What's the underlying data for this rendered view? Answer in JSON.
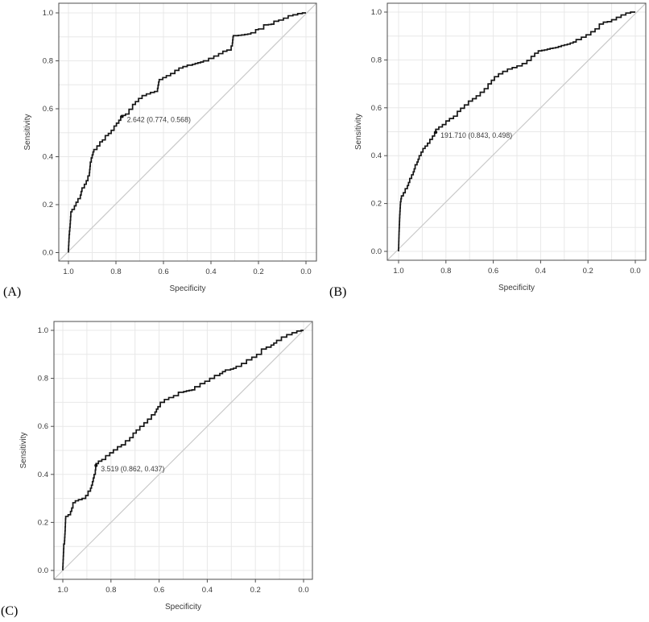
{
  "colors": {
    "background": "#ffffff",
    "curve": "#161616",
    "diagonal_line": "#c9c9c9",
    "grid": "#e8e8e8",
    "panel_border": "#4d4d4d",
    "tick_mark": "#4d4d4d",
    "text": "#3a3a3a",
    "threshold_point": "#111111"
  },
  "chart_data": [
    {
      "id": "A",
      "type": "line",
      "panel_label": "(A)",
      "xlabel": "Specificity",
      "ylabel": "Sensitivity",
      "x_axis_reversed": true,
      "xlim": [
        1.0,
        0.0
      ],
      "ylim": [
        0.0,
        1.0
      ],
      "x_ticks": [
        "1.0",
        "0.8",
        "0.6",
        "0.4",
        "0.2",
        "0.0"
      ],
      "y_ticks": [
        "0.0",
        "0.2",
        "0.4",
        "0.6",
        "0.8",
        "1.0"
      ],
      "grid": true,
      "grid_step": 0.1,
      "diagonal_reference_line": true,
      "threshold_annotation": {
        "text": "2.642 (0.774, 0.568)",
        "threshold": 2.642,
        "specificity": 0.774,
        "sensitivity": 0.568
      },
      "curve_points": [
        [
          1.0,
          0.0
        ],
        [
          0.997,
          0.06
        ],
        [
          0.993,
          0.105
        ],
        [
          0.99,
          0.15
        ],
        [
          0.985,
          0.17
        ],
        [
          0.975,
          0.18
        ],
        [
          0.968,
          0.195
        ],
        [
          0.96,
          0.21
        ],
        [
          0.95,
          0.225
        ],
        [
          0.943,
          0.255
        ],
        [
          0.933,
          0.27
        ],
        [
          0.925,
          0.285
        ],
        [
          0.918,
          0.3
        ],
        [
          0.912,
          0.32
        ],
        [
          0.908,
          0.36
        ],
        [
          0.9,
          0.395
        ],
        [
          0.893,
          0.42
        ],
        [
          0.88,
          0.43
        ],
        [
          0.868,
          0.445
        ],
        [
          0.857,
          0.462
        ],
        [
          0.845,
          0.47
        ],
        [
          0.832,
          0.488
        ],
        [
          0.82,
          0.497
        ],
        [
          0.808,
          0.51
        ],
        [
          0.798,
          0.528
        ],
        [
          0.788,
          0.54
        ],
        [
          0.78,
          0.552
        ],
        [
          0.774,
          0.568
        ],
        [
          0.76,
          0.572
        ],
        [
          0.745,
          0.578
        ],
        [
          0.73,
          0.598
        ],
        [
          0.718,
          0.618
        ],
        [
          0.705,
          0.63
        ],
        [
          0.69,
          0.643
        ],
        [
          0.672,
          0.655
        ],
        [
          0.655,
          0.662
        ],
        [
          0.638,
          0.668
        ],
        [
          0.625,
          0.672
        ],
        [
          0.618,
          0.712
        ],
        [
          0.603,
          0.722
        ],
        [
          0.588,
          0.73
        ],
        [
          0.57,
          0.738
        ],
        [
          0.552,
          0.747
        ],
        [
          0.535,
          0.76
        ],
        [
          0.518,
          0.77
        ],
        [
          0.5,
          0.776
        ],
        [
          0.478,
          0.782
        ],
        [
          0.455,
          0.789
        ],
        [
          0.432,
          0.795
        ],
        [
          0.41,
          0.8
        ],
        [
          0.388,
          0.81
        ],
        [
          0.368,
          0.82
        ],
        [
          0.35,
          0.83
        ],
        [
          0.333,
          0.84
        ],
        [
          0.315,
          0.845
        ],
        [
          0.31,
          0.862
        ],
        [
          0.306,
          0.9
        ],
        [
          0.285,
          0.905
        ],
        [
          0.258,
          0.908
        ],
        [
          0.232,
          0.912
        ],
        [
          0.212,
          0.917
        ],
        [
          0.2,
          0.93
        ],
        [
          0.178,
          0.933
        ],
        [
          0.158,
          0.95
        ],
        [
          0.135,
          0.953
        ],
        [
          0.115,
          0.965
        ],
        [
          0.095,
          0.97
        ],
        [
          0.075,
          0.978
        ],
        [
          0.055,
          0.988
        ],
        [
          0.035,
          0.992
        ],
        [
          0.015,
          0.997
        ],
        [
          0.0,
          1.0
        ]
      ]
    },
    {
      "id": "B",
      "type": "line",
      "panel_label": "(B)",
      "xlabel": "Specificity",
      "ylabel": "Sensitivity",
      "x_axis_reversed": true,
      "xlim": [
        1.0,
        0.0
      ],
      "ylim": [
        0.0,
        1.0
      ],
      "x_ticks": [
        "1.0",
        "0.8",
        "0.6",
        "0.4",
        "0.2",
        "0.0"
      ],
      "y_ticks": [
        "0.0",
        "0.2",
        "0.4",
        "0.6",
        "0.8",
        "1.0"
      ],
      "grid": true,
      "grid_step": 0.1,
      "diagonal_reference_line": true,
      "threshold_annotation": {
        "text": "191.710 (0.843, 0.498)",
        "threshold": 191.71,
        "specificity": 0.843,
        "sensitivity": 0.498
      },
      "curve_points": [
        [
          1.0,
          0.0
        ],
        [
          0.998,
          0.07
        ],
        [
          0.995,
          0.14
        ],
        [
          0.992,
          0.195
        ],
        [
          0.988,
          0.22
        ],
        [
          0.98,
          0.232
        ],
        [
          0.972,
          0.245
        ],
        [
          0.963,
          0.262
        ],
        [
          0.953,
          0.288
        ],
        [
          0.945,
          0.305
        ],
        [
          0.938,
          0.32
        ],
        [
          0.93,
          0.345
        ],
        [
          0.922,
          0.362
        ],
        [
          0.913,
          0.385
        ],
        [
          0.905,
          0.4
        ],
        [
          0.897,
          0.415
        ],
        [
          0.888,
          0.43
        ],
        [
          0.878,
          0.44
        ],
        [
          0.868,
          0.452
        ],
        [
          0.857,
          0.468
        ],
        [
          0.848,
          0.482
        ],
        [
          0.843,
          0.498
        ],
        [
          0.83,
          0.51
        ],
        [
          0.815,
          0.52
        ],
        [
          0.8,
          0.53
        ],
        [
          0.785,
          0.545
        ],
        [
          0.768,
          0.555
        ],
        [
          0.752,
          0.565
        ],
        [
          0.738,
          0.585
        ],
        [
          0.722,
          0.598
        ],
        [
          0.705,
          0.612
        ],
        [
          0.688,
          0.628
        ],
        [
          0.672,
          0.638
        ],
        [
          0.655,
          0.65
        ],
        [
          0.638,
          0.665
        ],
        [
          0.622,
          0.68
        ],
        [
          0.608,
          0.7
        ],
        [
          0.595,
          0.715
        ],
        [
          0.578,
          0.73
        ],
        [
          0.56,
          0.742
        ],
        [
          0.54,
          0.752
        ],
        [
          0.52,
          0.762
        ],
        [
          0.5,
          0.768
        ],
        [
          0.478,
          0.775
        ],
        [
          0.458,
          0.785
        ],
        [
          0.44,
          0.798
        ],
        [
          0.425,
          0.815
        ],
        [
          0.41,
          0.828
        ],
        [
          0.395,
          0.838
        ],
        [
          0.372,
          0.842
        ],
        [
          0.348,
          0.848
        ],
        [
          0.325,
          0.852
        ],
        [
          0.3,
          0.86
        ],
        [
          0.275,
          0.866
        ],
        [
          0.25,
          0.875
        ],
        [
          0.228,
          0.885
        ],
        [
          0.208,
          0.895
        ],
        [
          0.188,
          0.905
        ],
        [
          0.17,
          0.918
        ],
        [
          0.152,
          0.93
        ],
        [
          0.135,
          0.95
        ],
        [
          0.118,
          0.958
        ],
        [
          0.1,
          0.96
        ],
        [
          0.08,
          0.968
        ],
        [
          0.06,
          0.978
        ],
        [
          0.04,
          0.988
        ],
        [
          0.02,
          0.996
        ],
        [
          0.0,
          1.0
        ]
      ]
    },
    {
      "id": "C",
      "type": "line",
      "panel_label": "(C)",
      "xlabel": "Specificity",
      "ylabel": "Sensitivity",
      "x_axis_reversed": true,
      "xlim": [
        1.0,
        0.0
      ],
      "ylim": [
        0.0,
        1.0
      ],
      "x_ticks": [
        "1.0",
        "0.8",
        "0.6",
        "0.4",
        "0.2",
        "0.0"
      ],
      "y_ticks": [
        "0.0",
        "0.2",
        "0.4",
        "0.6",
        "0.8",
        "1.0"
      ],
      "grid": true,
      "grid_step": 0.1,
      "diagonal_reference_line": true,
      "threshold_annotation": {
        "text": "3.519 (0.862, 0.437)",
        "threshold": 3.519,
        "specificity": 0.862,
        "sensitivity": 0.437
      },
      "curve_points": [
        [
          1.0,
          0.0
        ],
        [
          0.998,
          0.045
        ],
        [
          0.996,
          0.09
        ],
        [
          0.993,
          0.11
        ],
        [
          0.99,
          0.165
        ],
        [
          0.988,
          0.215
        ],
        [
          0.978,
          0.225
        ],
        [
          0.968,
          0.232
        ],
        [
          0.958,
          0.26
        ],
        [
          0.948,
          0.282
        ],
        [
          0.935,
          0.29
        ],
        [
          0.92,
          0.295
        ],
        [
          0.905,
          0.3
        ],
        [
          0.895,
          0.312
        ],
        [
          0.885,
          0.33
        ],
        [
          0.877,
          0.355
        ],
        [
          0.87,
          0.385
        ],
        [
          0.865,
          0.4
        ],
        [
          0.862,
          0.437
        ],
        [
          0.852,
          0.445
        ],
        [
          0.838,
          0.455
        ],
        [
          0.822,
          0.462
        ],
        [
          0.805,
          0.478
        ],
        [
          0.79,
          0.49
        ],
        [
          0.773,
          0.502
        ],
        [
          0.757,
          0.515
        ],
        [
          0.74,
          0.523
        ],
        [
          0.722,
          0.54
        ],
        [
          0.708,
          0.553
        ],
        [
          0.695,
          0.572
        ],
        [
          0.68,
          0.585
        ],
        [
          0.663,
          0.6
        ],
        [
          0.648,
          0.615
        ],
        [
          0.632,
          0.63
        ],
        [
          0.617,
          0.648
        ],
        [
          0.605,
          0.672
        ],
        [
          0.595,
          0.682
        ],
        [
          0.578,
          0.7
        ],
        [
          0.56,
          0.712
        ],
        [
          0.54,
          0.72
        ],
        [
          0.52,
          0.728
        ],
        [
          0.498,
          0.742
        ],
        [
          0.475,
          0.748
        ],
        [
          0.452,
          0.752
        ],
        [
          0.43,
          0.765
        ],
        [
          0.41,
          0.778
        ],
        [
          0.39,
          0.788
        ],
        [
          0.37,
          0.8
        ],
        [
          0.348,
          0.812
        ],
        [
          0.325,
          0.828
        ],
        [
          0.303,
          0.835
        ],
        [
          0.28,
          0.842
        ],
        [
          0.258,
          0.85
        ],
        [
          0.237,
          0.862
        ],
        [
          0.215,
          0.877
        ],
        [
          0.195,
          0.888
        ],
        [
          0.175,
          0.9
        ],
        [
          0.155,
          0.922
        ],
        [
          0.135,
          0.93
        ],
        [
          0.112,
          0.947
        ],
        [
          0.092,
          0.958
        ],
        [
          0.07,
          0.972
        ],
        [
          0.048,
          0.982
        ],
        [
          0.028,
          0.99
        ],
        [
          0.01,
          0.997
        ],
        [
          0.0,
          1.0
        ]
      ]
    }
  ]
}
